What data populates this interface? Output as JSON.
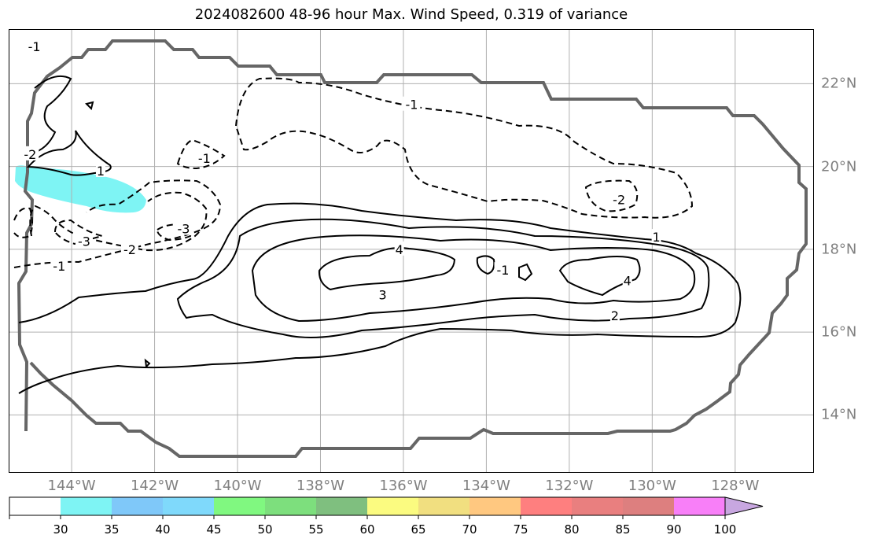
{
  "title": "2024082600 48-96 hour Max. Wind Speed, 0.319 of variance",
  "map": {
    "lon_range": [
      -145.5,
      -126.1
    ],
    "lat_range": [
      12.6,
      23.3
    ],
    "lat_ticks": [
      {
        "value": 22,
        "label": "22°N"
      },
      {
        "value": 20,
        "label": "20°N"
      },
      {
        "value": 18,
        "label": "18°N"
      },
      {
        "value": 16,
        "label": "16°N"
      },
      {
        "value": 14,
        "label": "14°N"
      }
    ],
    "lon_ticks": [
      {
        "value": -144,
        "label": "144°W"
      },
      {
        "value": -142,
        "label": "142°W"
      },
      {
        "value": -140,
        "label": "140°W"
      },
      {
        "value": -138,
        "label": "138°W"
      },
      {
        "value": -136,
        "label": "136°W"
      },
      {
        "value": -134,
        "label": "134°W"
      },
      {
        "value": -132,
        "label": "132°W"
      },
      {
        "value": -130,
        "label": "130°W"
      },
      {
        "value": -128,
        "label": "128°W"
      }
    ],
    "gridlines": true,
    "shading": {
      "range": "30-35",
      "color": "#7ef4f4",
      "location": "around 19.6°N, 145.2°W-142.4°W"
    },
    "contour_labels": [
      {
        "text": "4",
        "lon": -136.1,
        "lat": 18.0
      },
      {
        "text": "4",
        "lon": -130.6,
        "lat": 17.25
      },
      {
        "text": "3",
        "lon": -136.5,
        "lat": 16.9
      },
      {
        "text": "2",
        "lon": -130.9,
        "lat": 16.4
      },
      {
        "text": "1",
        "lon": -129.9,
        "lat": 18.3
      },
      {
        "text": "1",
        "lon": -143.3,
        "lat": 19.9
      },
      {
        "text": "-1",
        "lon": -135.8,
        "lat": 21.5
      },
      {
        "text": "-1",
        "lon": -140.8,
        "lat": 20.2
      },
      {
        "text": "-1",
        "lon": -144.3,
        "lat": 17.6
      },
      {
        "text": "-2",
        "lon": -130.8,
        "lat": 19.2
      },
      {
        "text": "-2",
        "lon": -142.6,
        "lat": 18.0
      },
      {
        "text": "-2",
        "lon": -145.0,
        "lat": 20.3
      },
      {
        "text": "-3",
        "lon": -141.3,
        "lat": 18.5
      },
      {
        "text": "-3",
        "lon": -143.7,
        "lat": 18.2
      },
      {
        "text": "-1",
        "lon": -133.6,
        "lat": 17.5
      },
      {
        "text": "-1",
        "lon": -144.9,
        "lat": 22.9
      }
    ]
  },
  "colorbar": {
    "ticks": [
      "30",
      "35",
      "40",
      "45",
      "50",
      "55",
      "60",
      "65",
      "70",
      "75",
      "80",
      "85",
      "90",
      "100"
    ],
    "colors": [
      "#ffffff",
      "#7ef4f4",
      "#7fc8f9",
      "#7fd9fb",
      "#80f880",
      "#7ddf7d",
      "#7fbf7f",
      "#fbfb80",
      "#f1df80",
      "#ffc880",
      "#fe7f7f",
      "#e97f7f",
      "#dd7f7f",
      "#f87ff8",
      "#c8a7e0"
    ]
  }
}
